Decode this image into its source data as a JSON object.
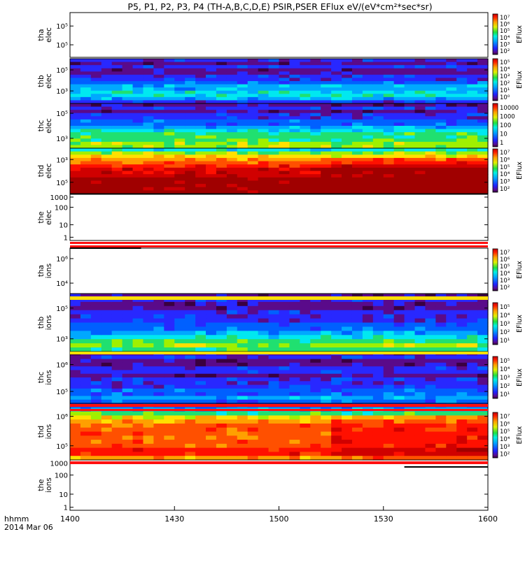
{
  "title": "P5, P1, P2, P3, P4 (TH-A,B,C,D,E) PSIR,PSER EFlux eV/(eV*cm²*sec*sr)",
  "x_axis": {
    "label_line1": "hhmm",
    "label_line2": "2014 Mar 06",
    "ticks": [
      "1400",
      "1430",
      "1500",
      "1530",
      "1600"
    ]
  },
  "chart_data": [
    {
      "type": "heatmap",
      "panel": "tha-elec",
      "ylabel": [
        "tha",
        "elec"
      ],
      "yticks": [
        "10⁵",
        "10⁵"
      ],
      "empty": true,
      "colorbar": {
        "ticks": [
          "10⁷",
          "10⁶",
          "10⁵",
          "10⁴",
          "10³",
          "10²"
        ],
        "label": "EFlux"
      }
    },
    {
      "type": "heatmap",
      "panel": "thb-elec",
      "ylabel": [
        "thb",
        "elec"
      ],
      "yticks": [
        "10⁵",
        "10³"
      ],
      "colorbar": {
        "ticks": [
          "10⁵",
          "10⁴",
          "10³",
          "10²",
          "10¹",
          "10⁰"
        ],
        "label": "EFlux"
      }
    },
    {
      "type": "heatmap",
      "panel": "thc-elec",
      "ylabel": [
        "thc",
        "elec"
      ],
      "yticks": [
        "10⁵",
        "10³"
      ],
      "colorbar": {
        "ticks": [
          "10000",
          "1000",
          "100",
          "10",
          "1"
        ],
        "label": ""
      }
    },
    {
      "type": "heatmap",
      "panel": "thd-elec",
      "ylabel": [
        "thd",
        "elec"
      ],
      "yticks": [
        "10³",
        "10⁵"
      ],
      "colorbar": {
        "ticks": [
          "10⁷",
          "10⁶",
          "10⁵",
          "10⁴",
          "10³",
          "10²"
        ],
        "label": "EFlux"
      }
    },
    {
      "type": "heatmap",
      "panel": "the-elec",
      "ylabel": [
        "the",
        "elec"
      ],
      "yticks": [
        "1000",
        "100",
        "10",
        "1"
      ],
      "empty": true
    },
    {
      "type": "heatmap",
      "panel": "tha-ions",
      "ylabel": [
        "tha",
        "ions"
      ],
      "yticks": [
        "10⁶",
        "10⁴"
      ],
      "empty": true,
      "colorbar": {
        "ticks": [
          "10⁷",
          "10⁶",
          "10⁵",
          "10⁴",
          "10³",
          "10²"
        ],
        "label": "EFlux"
      }
    },
    {
      "type": "heatmap",
      "panel": "thb-ions",
      "ylabel": [
        "thb",
        "ions"
      ],
      "yticks": [
        "10⁵",
        "10³"
      ],
      "colorbar": {
        "ticks": [
          "10⁵",
          "10⁴",
          "10³",
          "10²",
          "10¹"
        ],
        "label": "EFlux"
      }
    },
    {
      "type": "heatmap",
      "panel": "thc-ions",
      "ylabel": [
        "thc",
        "ions"
      ],
      "yticks": [
        "10⁶",
        "10⁵"
      ],
      "colorbar": {
        "ticks": [
          "10⁵",
          "10⁴",
          "10³",
          "10²",
          "10¹"
        ],
        "label": "EFlux"
      }
    },
    {
      "type": "heatmap",
      "panel": "thd-ions",
      "ylabel": [
        "thd",
        "ions"
      ],
      "yticks": [
        "10⁶",
        "10⁵"
      ],
      "colorbar": {
        "ticks": [
          "10⁷",
          "10⁶",
          "10⁵",
          "10⁴",
          "10³",
          "10²"
        ],
        "label": "EFlux"
      }
    },
    {
      "type": "heatmap",
      "panel": "the-ions",
      "ylabel": [
        "the",
        "ions"
      ],
      "yticks": [
        "1000",
        "100",
        "10",
        "1"
      ],
      "empty": true
    }
  ]
}
